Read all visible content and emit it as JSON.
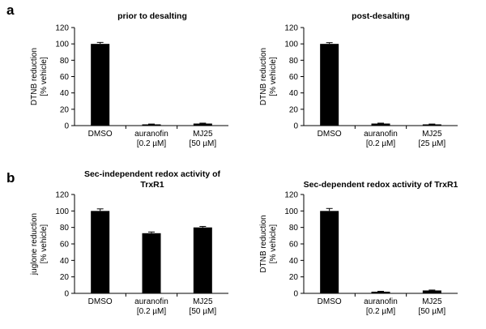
{
  "panel_letters": [
    "a",
    "b"
  ],
  "chart_data": [
    {
      "type": "bar",
      "panel": "a",
      "title": [
        "prior to desalting"
      ],
      "ylabel": [
        "DTNB reduction",
        "[% vehicle]"
      ],
      "categories": [
        [
          "DMSO"
        ],
        [
          "auranofin",
          "[0.2 µM]"
        ],
        [
          "MJ25",
          "[50 µM]"
        ]
      ],
      "values": [
        100,
        1.5,
        2.5
      ],
      "errors": [
        1.8,
        0.4,
        0.5
      ],
      "ylim": [
        0,
        120
      ],
      "yticks": [
        0,
        20,
        40,
        60,
        80,
        100,
        120
      ],
      "bar_color": "#000000"
    },
    {
      "type": "bar",
      "panel": "a",
      "title": [
        "post-desalting"
      ],
      "ylabel": [
        "DTNB reduction",
        "[% vehicle]"
      ],
      "categories": [
        [
          "DMSO"
        ],
        [
          "auranofin",
          "[0.2 µM]"
        ],
        [
          "MJ25",
          "[25 µM]"
        ]
      ],
      "values": [
        100,
        2.5,
        1.5
      ],
      "errors": [
        1.5,
        0.5,
        0.4
      ],
      "ylim": [
        0,
        120
      ],
      "yticks": [
        0,
        20,
        40,
        60,
        80,
        100,
        120
      ],
      "bar_color": "#000000"
    },
    {
      "type": "bar",
      "panel": "b",
      "title": [
        "Sec-independent redox activity of",
        "TrxR1"
      ],
      "ylabel": [
        "juglone reduction",
        "[% vehicle]"
      ],
      "categories": [
        [
          "DMSO"
        ],
        [
          "auranofin",
          "[0.2 µM]"
        ],
        [
          "MJ25",
          "[50 µM]"
        ]
      ],
      "values": [
        100,
        73,
        80
      ],
      "errors": [
        2.5,
        1.5,
        1.2
      ],
      "ylim": [
        0,
        120
      ],
      "yticks": [
        0,
        20,
        40,
        60,
        80,
        100,
        120
      ],
      "bar_color": "#000000"
    },
    {
      "type": "bar",
      "panel": "b",
      "title": [
        "Sec-dependent redox activity of TrxR1"
      ],
      "ylabel": [
        "DTNB reduction",
        "[% vehicle]"
      ],
      "categories": [
        [
          "DMSO"
        ],
        [
          "auranofin",
          "[0.2 µM]"
        ],
        [
          "MJ25",
          "[50 µM]"
        ]
      ],
      "values": [
        100,
        2,
        3.5
      ],
      "errors": [
        3,
        0.5,
        0.5
      ],
      "ylim": [
        0,
        120
      ],
      "yticks": [
        0,
        20,
        40,
        60,
        80,
        100,
        120
      ],
      "bar_color": "#000000"
    }
  ]
}
